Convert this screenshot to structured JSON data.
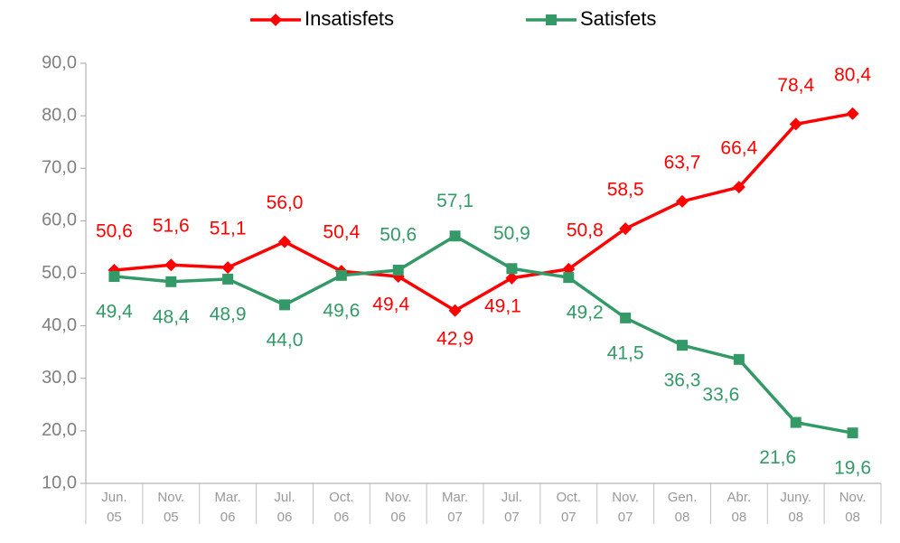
{
  "chart_data": {
    "type": "line",
    "categories": [
      "Jun. 05",
      "Nov. 05",
      "Mar. 06",
      "Jul. 06",
      "Oct. 06",
      "Nov. 06",
      "Mar. 07",
      "Jul. 07",
      "Oct. 07",
      "Nov. 07",
      "Gen. 08",
      "Abr. 08",
      "Juny. 08",
      "Nov. 08"
    ],
    "series": [
      {
        "name": "Insatisfets",
        "color": "#ff0000",
        "marker": "diamond",
        "values": [
          50.6,
          51.6,
          51.1,
          56.0,
          50.4,
          49.4,
          42.9,
          49.1,
          50.8,
          58.5,
          63.7,
          66.4,
          78.4,
          80.4
        ],
        "value_labels": [
          "50,6",
          "51,6",
          "51,1",
          "56,0",
          "50,4",
          "49,4",
          "42,9",
          "49,1",
          "50,8",
          "58,5",
          "63,7",
          "66,4",
          "78,4",
          "80,4"
        ]
      },
      {
        "name": "Satisfets",
        "color": "#339966",
        "marker": "square",
        "values": [
          49.4,
          48.4,
          48.9,
          44.0,
          49.6,
          50.6,
          57.1,
          50.9,
          49.2,
          41.5,
          36.3,
          33.6,
          21.6,
          19.6
        ],
        "value_labels": [
          "49,4",
          "48,4",
          "48,9",
          "44,0",
          "49,6",
          "50,6",
          "57,1",
          "50,9",
          "49,2",
          "41,5",
          "36,3",
          "33,6",
          "21,6",
          "19,6"
        ]
      }
    ],
    "ylim": [
      10,
      90
    ],
    "yticks": [
      {
        "value": 10,
        "label": "10,0"
      },
      {
        "value": 20,
        "label": "20,0"
      },
      {
        "value": 30,
        "label": "30,0"
      },
      {
        "value": 40,
        "label": "40,0"
      },
      {
        "value": 50,
        "label": "50,0"
      },
      {
        "value": 60,
        "label": "60,0"
      },
      {
        "value": 70,
        "label": "70,0"
      },
      {
        "value": 80,
        "label": "80,0"
      },
      {
        "value": 90,
        "label": "90,0"
      }
    ],
    "grid": false,
    "legend": "top"
  }
}
